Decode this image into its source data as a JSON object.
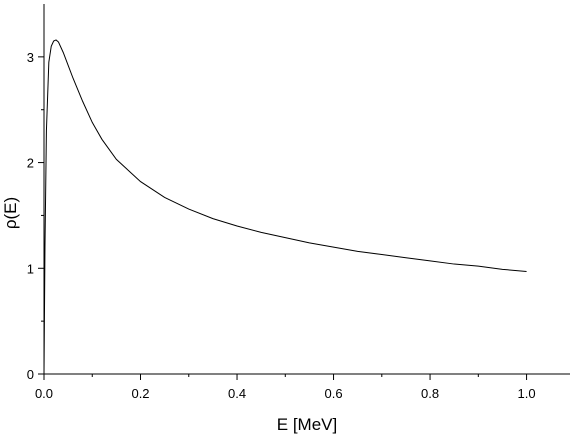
{
  "chart_data": {
    "type": "line",
    "xlabel": "E [MeV]",
    "ylabel": "ρ(E)",
    "xlim": [
      0.0,
      1.09
    ],
    "ylim": [
      0,
      3.5
    ],
    "x_ticks": [
      "0.0",
      "0.2",
      "0.4",
      "0.6",
      "0.8",
      "1.0"
    ],
    "y_ticks": [
      "0",
      "1",
      "2",
      "3"
    ],
    "grid": false,
    "line_color": "#000000",
    "series": [
      {
        "x": [
          0.0,
          0.002,
          0.005,
          0.01,
          0.015,
          0.02,
          0.025,
          0.03,
          0.04,
          0.05,
          0.06,
          0.08,
          0.1,
          0.12,
          0.15,
          0.2,
          0.25,
          0.3,
          0.35,
          0.4,
          0.45,
          0.5,
          0.55,
          0.6,
          0.65,
          0.7,
          0.75,
          0.8,
          0.85,
          0.9,
          0.95,
          1.0
        ],
        "y": [
          0.0,
          1.2,
          2.3,
          2.95,
          3.1,
          3.15,
          3.16,
          3.14,
          3.04,
          2.92,
          2.8,
          2.58,
          2.38,
          2.22,
          2.03,
          1.82,
          1.67,
          1.56,
          1.47,
          1.4,
          1.34,
          1.29,
          1.24,
          1.2,
          1.16,
          1.13,
          1.1,
          1.07,
          1.04,
          1.02,
          0.99,
          0.97
        ]
      }
    ]
  }
}
